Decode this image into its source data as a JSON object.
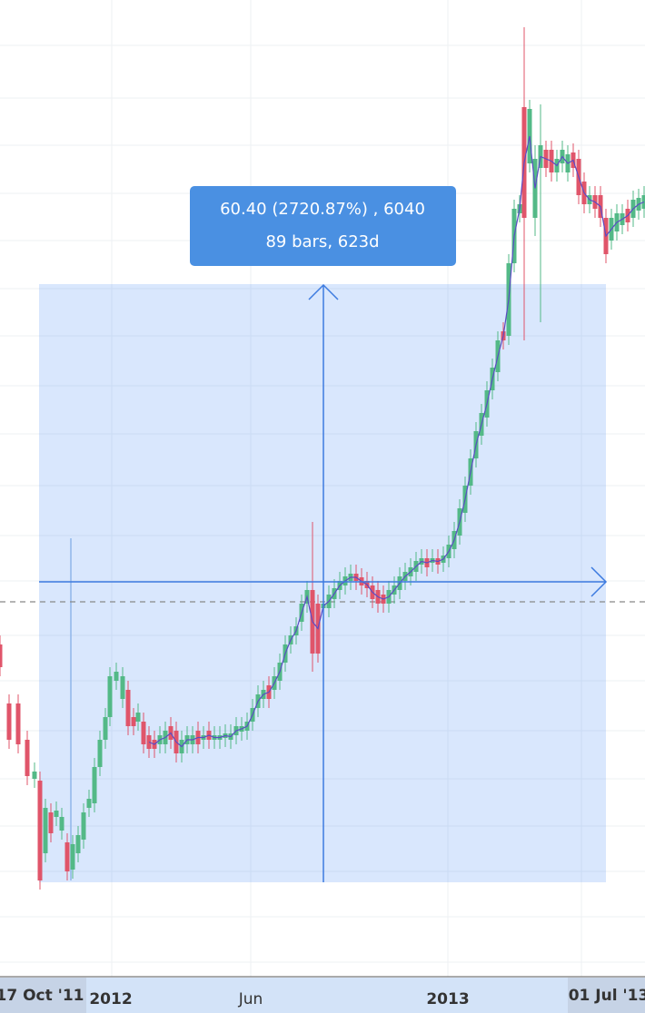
{
  "tooltip": {
    "line1": "60.40 (2720.87%) , 6040",
    "line2": "89 bars, 623d"
  },
  "x_axis": {
    "labels": [
      "17 Oct '11",
      "2012",
      "Jun",
      "2013",
      "01 Jul '13"
    ]
  }
}
